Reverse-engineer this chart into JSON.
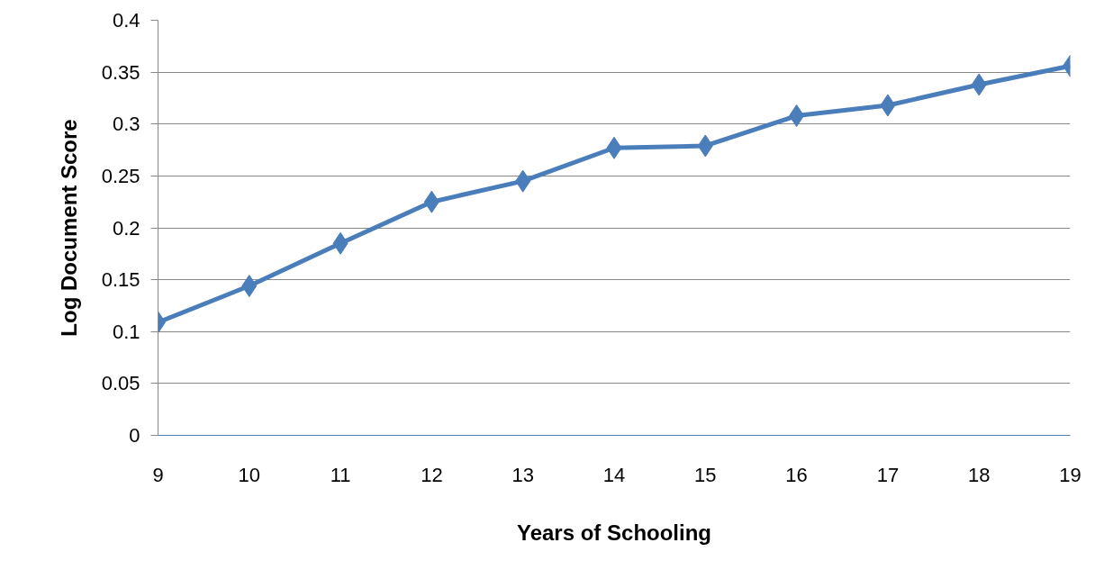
{
  "chart_data": {
    "type": "line",
    "xlabel": "Years of Schooling",
    "ylabel": "Log Document Score",
    "x": [
      9,
      10,
      11,
      12,
      13,
      14,
      15,
      16,
      17,
      18,
      19
    ],
    "series": [
      {
        "color": "#4a7ebb",
        "values": [
          0.109,
          0.144,
          0.185,
          0.225,
          0.245,
          0.277,
          0.279,
          0.308,
          0.318,
          0.338,
          0.356
        ]
      }
    ],
    "xlim": [
      9,
      19
    ],
    "xticks": [
      9,
      10,
      11,
      12,
      13,
      14,
      15,
      16,
      17,
      18,
      19
    ],
    "ylim": [
      0,
      0.4
    ],
    "yticks": [
      0,
      0.05,
      0.1,
      0.15,
      0.2,
      0.25,
      0.3,
      0.35,
      0.4
    ],
    "grid": "y",
    "marker": "diamond",
    "line_style": "solid"
  }
}
